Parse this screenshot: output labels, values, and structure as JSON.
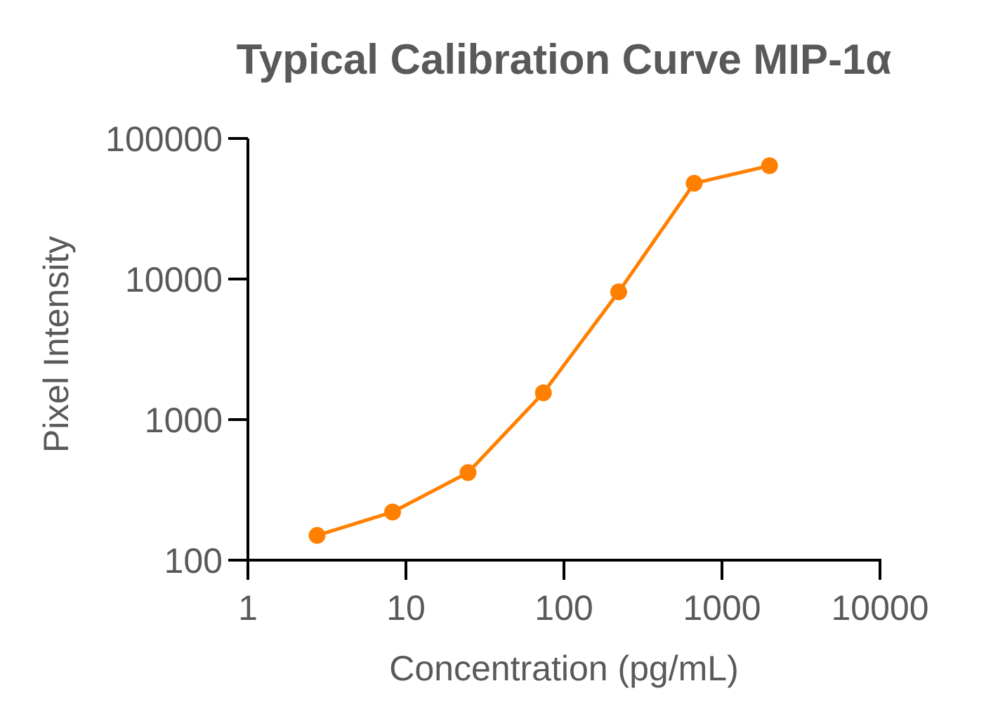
{
  "chart_data": {
    "type": "line",
    "title": "Typical Calibration Curve MIP-1α",
    "xlabel": "Concentration (pg/mL)",
    "ylabel": "Pixel Intensity",
    "x_scale": "log",
    "y_scale": "log",
    "xlim": [
      1,
      10000
    ],
    "ylim": [
      100,
      100000
    ],
    "x_ticks": [
      1,
      10,
      100,
      1000,
      10000
    ],
    "x_tick_labels": [
      "1",
      "10",
      "100",
      "1000",
      "10000"
    ],
    "y_ticks": [
      100,
      1000,
      10000,
      100000
    ],
    "y_tick_labels": [
      "100",
      "1000",
      "10000",
      "100000"
    ],
    "grid": false,
    "legend": "none",
    "series": [
      {
        "color": "#FF8000",
        "x": [
          2.74,
          8.23,
          24.7,
          74.1,
          222,
          667,
          2000
        ],
        "y": [
          150,
          220,
          420,
          1550,
          8100,
          48000,
          64000
        ]
      }
    ]
  }
}
